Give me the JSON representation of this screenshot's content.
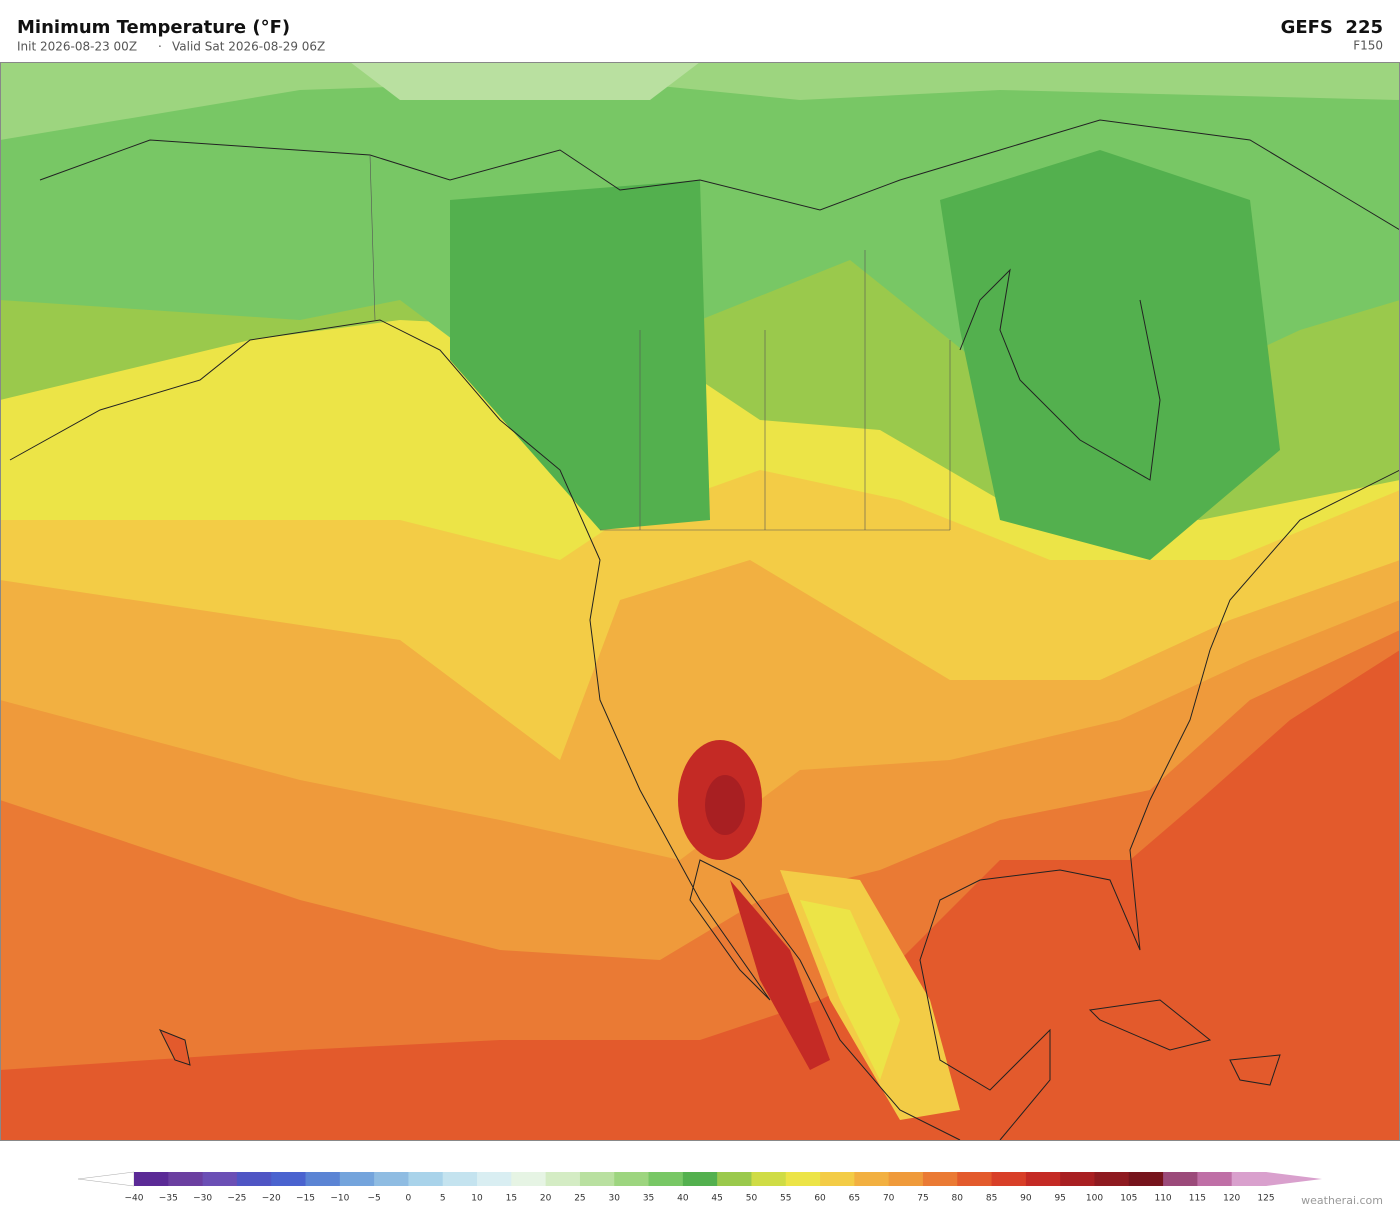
{
  "header": {
    "title": "Minimum Temperature  (°F)",
    "init": "Init 2026-08-23 00Z",
    "separator": "·",
    "valid": "Valid Sat 2026-08-29 06Z",
    "model": "GEFS  225",
    "forecast_hour": "F150"
  },
  "colorbar": {
    "labels": [
      "−40",
      "−35",
      "−30",
      "−25",
      "−20",
      "−15",
      "−10",
      "−5",
      "0",
      "5",
      "10",
      "15",
      "20",
      "25",
      "30",
      "35",
      "40",
      "45",
      "50",
      "55",
      "60",
      "65",
      "70",
      "75",
      "80",
      "85",
      "90",
      "95",
      "100",
      "105",
      "110",
      "115",
      "120",
      "125"
    ],
    "colors": [
      "#5b2a96",
      "#6b3fa0",
      "#6b4fb5",
      "#4f55c4",
      "#4a63cf",
      "#5b84d4",
      "#74a4dc",
      "#8fbce2",
      "#a9d3ea",
      "#c4e3ef",
      "#d9eef2",
      "#e6f4e4",
      "#d4ecc4",
      "#b9e0a0",
      "#9dd57f",
      "#78c765",
      "#53b04e",
      "#9ac94c",
      "#cfdc45",
      "#ece447",
      "#f3cc46",
      "#f2b041",
      "#ef9a3b",
      "#ea7a34",
      "#e35a2c",
      "#d83f28",
      "#c42a25",
      "#a81f22",
      "#8e1a20",
      "#76141c",
      "#9b4a7a",
      "#bf6fa6",
      "#d9a0cd"
    ],
    "under_color": "#ffffff",
    "over_color": "#d9a0cd"
  },
  "footer": {
    "credit": "weatherai.com"
  }
}
